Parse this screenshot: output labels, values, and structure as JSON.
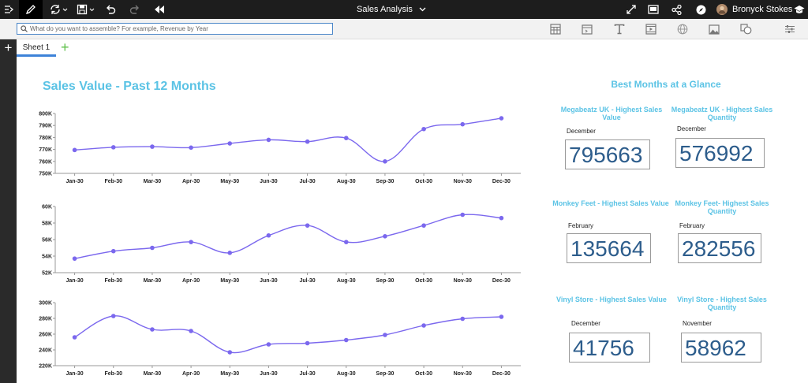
{
  "app": {
    "title": "Sales Analysis",
    "user": "Bronyck Stokes"
  },
  "toolbar": {
    "search_placeholder": "What do you want to assemble? For example, Revenue by Year"
  },
  "tabs": [
    {
      "label": "Sheet 1"
    }
  ],
  "dashboard": {
    "title": "Sales Value - Past 12 Months",
    "glance_title": "Best Months at a Glance"
  },
  "colors": {
    "line": "#7b68ee",
    "accent": "#5bc3e5",
    "kpi_value": "#2d5d8c"
  },
  "chart_data": [
    {
      "type": "line",
      "categories": [
        "Jan-30",
        "Feb-30",
        "Mar-30",
        "Apr-30",
        "May-30",
        "Jun-30",
        "Jul-30",
        "Aug-30",
        "Sep-30",
        "Oct-30",
        "Nov-30",
        "Dec-30"
      ],
      "values": [
        769500,
        771800,
        772300,
        771500,
        775000,
        778000,
        776500,
        779500,
        760000,
        787000,
        791000,
        796000
      ],
      "ylim": [
        750000,
        800000
      ],
      "yticks": [
        "750K",
        "760K",
        "770K",
        "780K",
        "790K",
        "800K"
      ],
      "grid": false
    },
    {
      "type": "line",
      "categories": [
        "Jan-30",
        "Feb-30",
        "Mar-30",
        "Apr-30",
        "May-30",
        "Jun-30",
        "Jul-30",
        "Aug-30",
        "Sep-30",
        "Oct-30",
        "Nov-30",
        "Dec-30"
      ],
      "values": [
        53700,
        54600,
        55000,
        55700,
        54400,
        56500,
        57700,
        55700,
        56400,
        57700,
        59000,
        58600
      ],
      "ylim": [
        52000,
        60000
      ],
      "yticks": [
        "52K",
        "54K",
        "56K",
        "58K",
        "60K"
      ],
      "grid": false
    },
    {
      "type": "line",
      "categories": [
        "Jan-30",
        "Feb-30",
        "Mar-30",
        "Apr-30",
        "May-30",
        "Jun-30",
        "Jul-30",
        "Aug-30",
        "Sep-30",
        "Oct-30",
        "Nov-30",
        "Dec-30"
      ],
      "values": [
        256000,
        283000,
        266000,
        264000,
        237000,
        247000,
        248500,
        252500,
        259000,
        271000,
        279500,
        282000
      ],
      "ylim": [
        220000,
        300000
      ],
      "yticks": [
        "220K",
        "240K",
        "260K",
        "280K",
        "300K"
      ],
      "grid": false
    }
  ],
  "kpis": [
    {
      "title": "Megabeatz UK - Highest Sales Value",
      "month": "December",
      "value": "795663"
    },
    {
      "title": "Megabeatz UK - Highest Sales Quantity",
      "month": "December",
      "value": "576992"
    },
    {
      "title": "Monkey Feet - Highest Sales Value",
      "month": "February",
      "value": "135664"
    },
    {
      "title": "Monkey Feet- Highest Sales Quantity",
      "month": "February",
      "value": "282556"
    },
    {
      "title": "Vinyl Store - Highest Sales Value",
      "month": "December",
      "value": "41756"
    },
    {
      "title": "Vinyl Store - Highest Sales Quantity",
      "month": "November",
      "value": "58962"
    }
  ],
  "icons": {
    "topbar": [
      "panel-toggle-icon",
      "pencil-icon",
      "refresh-icon",
      "save-icon",
      "undo-icon",
      "redo-icon",
      "rewind-icon",
      "chevron-down-icon",
      "fullscreen-icon",
      "present-icon",
      "share-icon",
      "compass-icon",
      "avatar",
      "learn-icon"
    ],
    "insert": [
      "table-icon",
      "web-icon",
      "text-icon",
      "media-icon",
      "globe-icon",
      "image-icon",
      "shapes-icon",
      "properties-icon"
    ]
  }
}
